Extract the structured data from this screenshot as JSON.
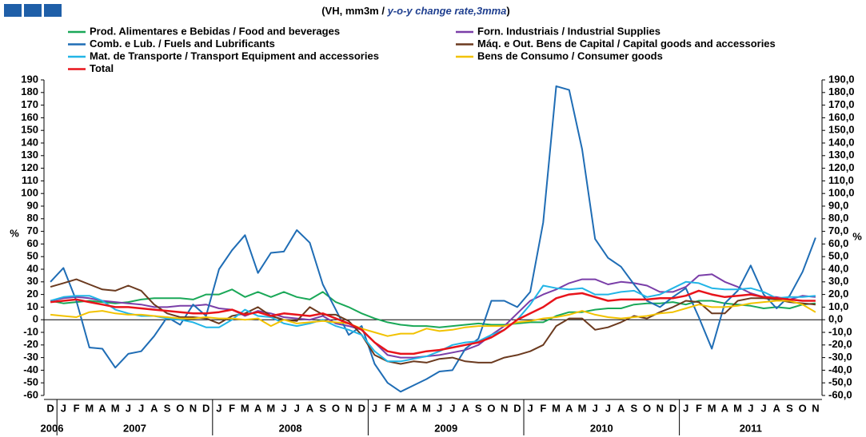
{
  "chart_data": {
    "type": "line",
    "title_prefix": "(VH, mm3m / ",
    "title_emphasis": "y-o-y change rate,3mma",
    "title_suffix": ")",
    "y_label": "%",
    "y2_label": "%",
    "categories": [
      "D",
      "J",
      "F",
      "M",
      "A",
      "M",
      "J",
      "J",
      "A",
      "S",
      "O",
      "N",
      "D",
      "J",
      "F",
      "M",
      "A",
      "M",
      "J",
      "J",
      "A",
      "S",
      "O",
      "N",
      "D",
      "J",
      "F",
      "M",
      "A",
      "M",
      "J",
      "J",
      "A",
      "S",
      "O",
      "N",
      "D",
      "J",
      "F",
      "M",
      "A",
      "M",
      "J",
      "J",
      "A",
      "S",
      "O",
      "N",
      "D",
      "J",
      "F",
      "M",
      "A",
      "M",
      "J",
      "J",
      "A",
      "S",
      "O",
      "N"
    ],
    "years": [
      "2006",
      "2007",
      "2008",
      "2009",
      "2010",
      "2011"
    ],
    "ylim": [
      -60,
      190
    ],
    "yticks": [
      190,
      180,
      170,
      160,
      150,
      140,
      130,
      120,
      110,
      100,
      90,
      80,
      70,
      60,
      50,
      40,
      30,
      20,
      10,
      0,
      -10,
      -20,
      -30,
      -40,
      -50,
      -60
    ],
    "y2lim": [
      -60,
      190
    ],
    "y2ticks": [
      {
        "value": 190,
        "label": "190,0"
      },
      {
        "value": 180,
        "label": "180,0"
      },
      {
        "value": 170,
        "label": "170,0"
      },
      {
        "value": 160,
        "label": "160,0"
      },
      {
        "value": 150,
        "label": "150,0"
      },
      {
        "value": 140,
        "label": "140,0"
      },
      {
        "value": 130,
        "label": "130,0"
      },
      {
        "value": 120,
        "label": "120,0"
      },
      {
        "value": 110,
        "label": "110,0"
      },
      {
        "value": 100,
        "label": "100,0"
      },
      {
        "value": 90,
        "label": "90,0"
      },
      {
        "value": 80,
        "label": "80,0"
      },
      {
        "value": 70,
        "label": "70,0"
      },
      {
        "value": 60,
        "label": "60,0"
      },
      {
        "value": 50,
        "label": "50,0"
      },
      {
        "value": 40,
        "label": "40,0"
      },
      {
        "value": 30,
        "label": "30,0"
      },
      {
        "value": 20,
        "label": "20,0"
      },
      {
        "value": 10,
        "label": "10,0"
      },
      {
        "value": 0,
        "label": "0,0"
      },
      {
        "value": -10,
        "label": "-10,0"
      },
      {
        "value": -20,
        "label": "-20,0"
      },
      {
        "value": -30,
        "label": "-30,0"
      },
      {
        "value": -40,
        "label": "-40,0"
      },
      {
        "value": -50,
        "label": "-50,0"
      },
      {
        "value": -60,
        "label": "-60,0"
      }
    ],
    "grid": false,
    "series": [
      {
        "name": "Prod. Alimentares e Bebidas / Food and beverages",
        "color": "#1aa858",
        "values": [
          15,
          13,
          14,
          15,
          14,
          13,
          14,
          16,
          17,
          17,
          17,
          16,
          20,
          20,
          24,
          18,
          22,
          18,
          22,
          18,
          16,
          22,
          14,
          10,
          5,
          1,
          -2,
          -4,
          -5,
          -5,
          -6,
          -5,
          -4,
          -3,
          -4,
          -4,
          -3,
          -2,
          -2,
          3,
          6,
          6,
          8,
          9,
          9,
          12,
          13,
          13,
          14,
          12,
          15,
          15,
          13,
          12,
          11,
          9,
          10,
          9,
          12,
          13
        ]
      },
      {
        "name": "Forn. Industriais / Industrial Supplies",
        "color": "#7a3ea8",
        "values": [
          15,
          17,
          18,
          17,
          15,
          14,
          13,
          12,
          10,
          10,
          11,
          11,
          12,
          9,
          8,
          3,
          7,
          5,
          2,
          1,
          0,
          3,
          -3,
          -5,
          -8,
          -18,
          -28,
          -30,
          -30,
          -29,
          -28,
          -26,
          -24,
          -20,
          -12,
          -5,
          5,
          15,
          20,
          24,
          29,
          32,
          32,
          28,
          30,
          29,
          27,
          22,
          22,
          26,
          35,
          36,
          30,
          26,
          21,
          18,
          18,
          16,
          19,
          18
        ]
      },
      {
        "name": "Comb. e Lub. /  Fuels and Lubrificants",
        "color": "#1f6db5",
        "values": [
          30,
          41,
          15,
          -22,
          -23,
          -38,
          -27,
          -25,
          -13,
          2,
          -4,
          12,
          3,
          40,
          55,
          67,
          37,
          53,
          54,
          71,
          61,
          28,
          8,
          -12,
          -5,
          -35,
          -50,
          -57,
          -52,
          -47,
          -41,
          -40,
          -23,
          -15,
          15,
          15,
          10,
          22,
          77,
          185,
          182,
          135,
          64,
          49,
          42,
          28,
          15,
          10,
          18,
          25,
          2,
          -23,
          13,
          23,
          43,
          20,
          9,
          19,
          38,
          65
        ]
      },
      {
        "name": "Máq. e Out. Bens de Capital / Capital goods and accessories",
        "color": "#6b3a1f",
        "values": [
          26,
          29,
          32,
          28,
          24,
          23,
          27,
          23,
          12,
          5,
          2,
          2,
          1,
          -3,
          3,
          5,
          10,
          3,
          0,
          -1,
          10,
          4,
          4,
          -1,
          -12,
          -28,
          -33,
          -35,
          -33,
          -34,
          -31,
          -30,
          -33,
          -34,
          -34,
          -30,
          -28,
          -25,
          -20,
          -5,
          1,
          1,
          -8,
          -6,
          -2,
          3,
          1,
          6,
          10,
          15,
          14,
          5,
          5,
          15,
          17,
          17,
          16,
          14,
          13,
          12
        ]
      },
      {
        "name": "Mat. de Transporte / Transport Equipment and accessories",
        "color": "#22b5e6",
        "values": [
          15,
          18,
          19,
          19,
          15,
          8,
          5,
          3,
          3,
          1,
          0,
          -2,
          -6,
          -6,
          0,
          8,
          3,
          2,
          -3,
          -5,
          -3,
          0,
          -5,
          -8,
          -12,
          -25,
          -33,
          -33,
          -31,
          -29,
          -25,
          -20,
          -18,
          -17,
          -12,
          -8,
          0,
          12,
          27,
          25,
          24,
          25,
          20,
          20,
          22,
          23,
          18,
          20,
          25,
          30,
          29,
          25,
          24,
          24,
          25,
          22,
          17,
          18,
          18,
          19
        ]
      },
      {
        "name": "Bens de Consumo / Consumer goods",
        "color": "#f2c200",
        "values": [
          4,
          3,
          2,
          6,
          7,
          5,
          4,
          4,
          3,
          2,
          1,
          1,
          2,
          1,
          1,
          0,
          1,
          -5,
          0,
          -3,
          -2,
          -1,
          -2,
          -3,
          -7,
          -10,
          -13,
          -11,
          -11,
          -7,
          -9,
          -8,
          -6,
          -5,
          -5,
          -5,
          -2,
          -1,
          1,
          2,
          4,
          7,
          4,
          2,
          1,
          2,
          3,
          5,
          6,
          9,
          12,
          10,
          10,
          11,
          13,
          14,
          15,
          15,
          12,
          6
        ]
      },
      {
        "name": "Total",
        "color": "#e8141b",
        "values": [
          14,
          15,
          16,
          14,
          12,
          10,
          10,
          9,
          8,
          7,
          6,
          5,
          5,
          6,
          8,
          4,
          6,
          3,
          5,
          4,
          3,
          5,
          1,
          -3,
          -8,
          -18,
          -25,
          -27,
          -27,
          -25,
          -24,
          -22,
          -20,
          -18,
          -14,
          -8,
          0,
          5,
          10,
          17,
          20,
          21,
          18,
          15,
          16,
          16,
          16,
          17,
          17,
          19,
          23,
          20,
          18,
          19,
          20,
          18,
          17,
          16,
          15,
          15
        ]
      }
    ]
  }
}
